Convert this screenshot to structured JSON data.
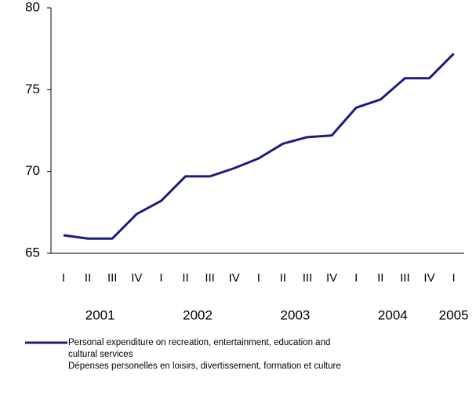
{
  "chart_data": {
    "type": "line",
    "categories": [
      "I",
      "II",
      "III",
      "IV",
      "I",
      "II",
      "III",
      "IV",
      "I",
      "II",
      "III",
      "IV",
      "I",
      "II",
      "III",
      "IV",
      "I"
    ],
    "x_groups": [
      "2001",
      "2002",
      "2003",
      "2004",
      "2005"
    ],
    "series": [
      {
        "name": "Personal expenditure on recreation, entertainment, education and cultural services\nDépenses personelles en loisirs, divertissement, formation et culture",
        "color": "#1c1c80",
        "values": [
          66.1,
          65.9,
          65.9,
          67.4,
          68.2,
          69.7,
          69.7,
          70.2,
          70.8,
          71.7,
          72.1,
          72.2,
          73.9,
          74.4,
          75.7,
          75.7,
          77.2
        ]
      }
    ],
    "ylim": [
      65,
      80
    ],
    "yticks": [
      65,
      70,
      75,
      80
    ]
  }
}
